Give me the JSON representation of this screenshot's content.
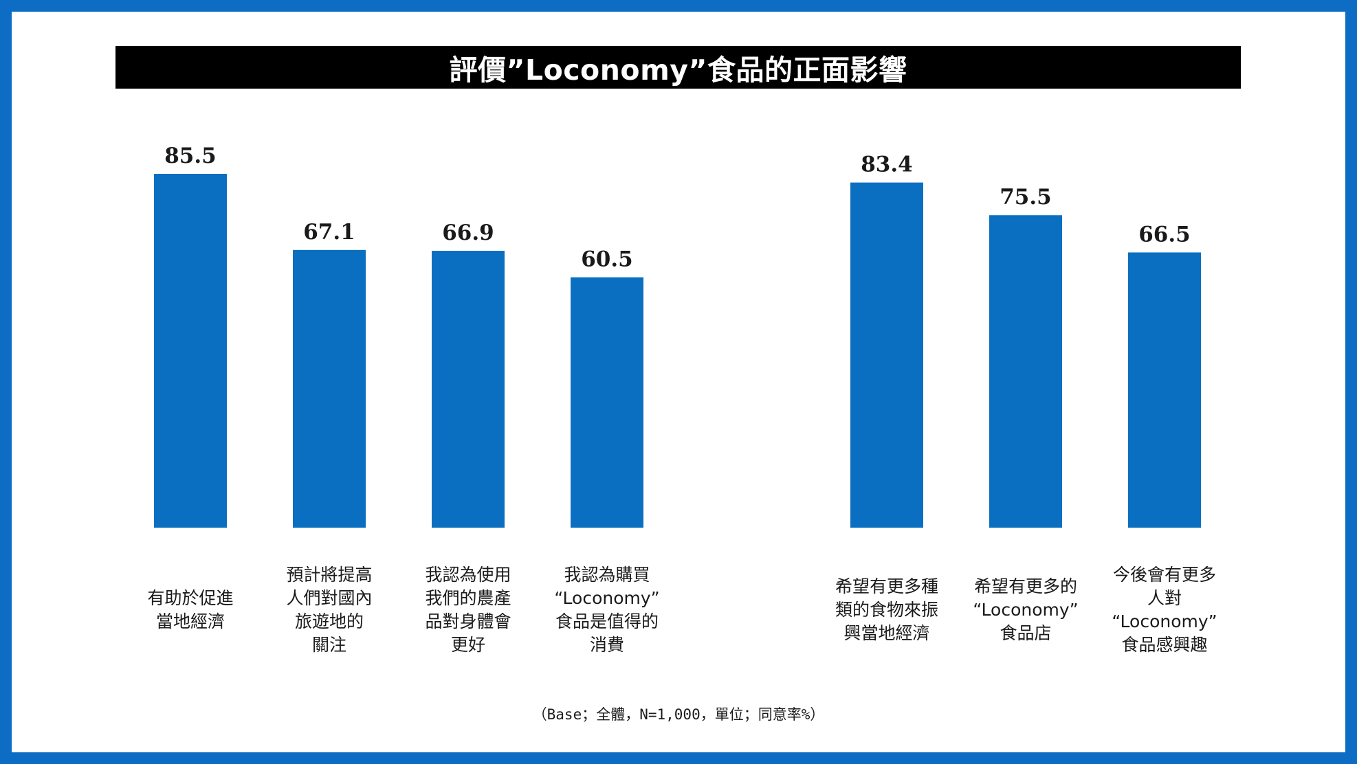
{
  "colors": {
    "frame": "#0d6cc4",
    "bar": "#0b6fc1",
    "title_bg": "#000000",
    "title_text": "#ffffff"
  },
  "chart_data": {
    "type": "bar",
    "title": "評價”Loconomy”食品的正面影響",
    "ylim": [
      0,
      100
    ],
    "grid": false,
    "groups": [
      {
        "categories": [
          [
            "有助於促進",
            "當地經濟"
          ],
          [
            "預計將提高",
            "人們對國內",
            "旅遊地的",
            "關注"
          ],
          [
            "我認為使用",
            "我們的農產",
            "品對身體會",
            "更好"
          ],
          [
            "我認為購買",
            "“Loconomy”",
            "食品是值得的",
            "消費"
          ]
        ],
        "values": [
          85.5,
          67.1,
          66.9,
          60.5
        ]
      },
      {
        "categories": [
          [
            "希望有更多種",
            "類的食物來振",
            "興當地經濟"
          ],
          [
            "希望有更多的",
            "“Loconomy”",
            "食品店"
          ],
          [
            "今後會有更多",
            "人對",
            "“Loconomy”",
            "食品感興趣"
          ]
        ],
        "values": [
          83.4,
          75.5,
          66.5
        ]
      }
    ]
  },
  "footnote": "（Base；全體，N=1,000，單位；同意率%）"
}
